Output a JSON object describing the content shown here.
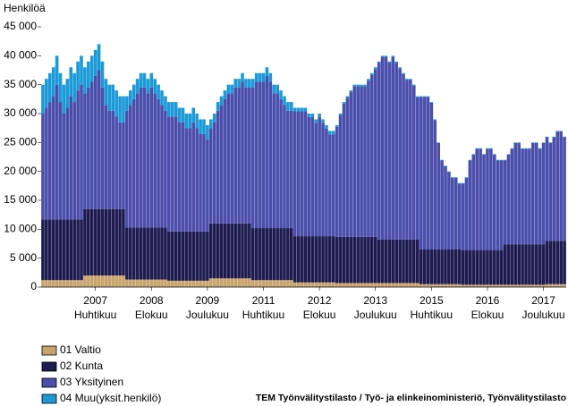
{
  "chart_data": {
    "type": "stacked_bar",
    "y_label": "Henkilöä",
    "source": "TEM Työnvälitystilasto / Työ- ja elinkeinoministeriö, Työnvälitystilasto",
    "ylim": [
      0,
      45000
    ],
    "yticks": [
      0,
      {
        "value": 5000,
        "label": "5 000"
      },
      {
        "value": 10000,
        "label": "10 000"
      },
      {
        "value": 15000,
        "label": "15 000"
      },
      {
        "value": 20000,
        "label": "20 000"
      },
      {
        "value": 25000,
        "label": "25 000"
      },
      {
        "value": 30000,
        "label": "30 000"
      },
      {
        "value": 35000,
        "label": "35 000"
      },
      {
        "value": 40000,
        "label": "40 000"
      },
      {
        "value": 45000,
        "label": "45 000"
      }
    ],
    "categories": [
      null,
      null,
      null,
      null,
      null,
      null,
      null,
      null,
      null,
      null,
      null,
      null,
      null,
      null,
      null,
      "2007 Huhtikuu",
      null,
      null,
      null,
      null,
      null,
      null,
      null,
      null,
      null,
      null,
      null,
      null,
      null,
      null,
      null,
      "2008 Elokuu",
      null,
      null,
      null,
      null,
      null,
      null,
      null,
      null,
      null,
      null,
      null,
      null,
      null,
      null,
      null,
      "2009 Joulukuu",
      null,
      null,
      null,
      null,
      null,
      null,
      null,
      null,
      null,
      null,
      null,
      null,
      null,
      null,
      null,
      "2011 Huhtikuu",
      null,
      null,
      null,
      null,
      null,
      null,
      null,
      null,
      null,
      null,
      null,
      null,
      null,
      null,
      null,
      "2012 Elokuu",
      null,
      null,
      null,
      null,
      null,
      null,
      null,
      null,
      null,
      null,
      null,
      null,
      null,
      null,
      null,
      "2013 Joulukuu",
      null,
      null,
      null,
      null,
      null,
      null,
      null,
      null,
      null,
      null,
      null,
      null,
      null,
      null,
      null,
      "2015 Huhtikuu",
      null,
      null,
      null,
      null,
      null,
      null,
      null,
      null,
      null,
      null,
      null,
      null,
      null,
      null,
      null,
      "2016 Elokuu",
      null,
      null,
      null,
      null,
      null,
      null,
      null,
      null,
      null,
      null,
      null,
      null,
      null,
      null,
      null,
      "2017 Joulukuu",
      null,
      null,
      null,
      null,
      null,
      null
    ],
    "series": [
      {
        "name": "01 Valtio",
        "color": "#c9a36c",
        "values": [
          1200,
          1200,
          1200,
          1200,
          1200,
          1200,
          1200,
          1200,
          1200,
          1200,
          1200,
          1200,
          2000,
          2000,
          2000,
          2000,
          2000,
          2000,
          2000,
          2000,
          2000,
          2000,
          2000,
          2000,
          1300,
          1300,
          1300,
          1300,
          1300,
          1300,
          1300,
          1300,
          1300,
          1300,
          1300,
          1300,
          1100,
          1100,
          1100,
          1100,
          1100,
          1100,
          1100,
          1100,
          1100,
          1100,
          1100,
          1100,
          1500,
          1500,
          1500,
          1500,
          1500,
          1500,
          1500,
          1500,
          1500,
          1500,
          1500,
          1500,
          1200,
          1200,
          1200,
          1200,
          1200,
          1200,
          1200,
          1200,
          1200,
          1200,
          1200,
          1200,
          800,
          800,
          800,
          800,
          800,
          800,
          800,
          800,
          800,
          800,
          800,
          800,
          700,
          700,
          700,
          700,
          700,
          700,
          700,
          700,
          700,
          700,
          700,
          700,
          700,
          700,
          700,
          700,
          700,
          700,
          700,
          700,
          700,
          700,
          700,
          700,
          500,
          500,
          500,
          500,
          500,
          500,
          500,
          500,
          500,
          500,
          500,
          500,
          400,
          400,
          400,
          400,
          400,
          400,
          400,
          400,
          400,
          400,
          400,
          400,
          400,
          400,
          400,
          400,
          400,
          400,
          400,
          400,
          400,
          400,
          400,
          400,
          500,
          500,
          500,
          500,
          500,
          500
        ]
      },
      {
        "name": "02 Kunta",
        "color": "#1d1b4f",
        "values": [
          10500,
          10500,
          10500,
          10500,
          10500,
          10500,
          10500,
          10500,
          10500,
          10500,
          10500,
          10500,
          11500,
          11500,
          11500,
          11500,
          11500,
          11500,
          11500,
          11500,
          11500,
          11500,
          11500,
          11500,
          9000,
          9000,
          9000,
          9000,
          9000,
          9000,
          9000,
          9000,
          9000,
          9000,
          9000,
          9000,
          8500,
          8500,
          8500,
          8500,
          8500,
          8500,
          8500,
          8500,
          8500,
          8500,
          8500,
          8500,
          9500,
          9500,
          9500,
          9500,
          9500,
          9500,
          9500,
          9500,
          9500,
          9500,
          9500,
          9500,
          9000,
          9000,
          9000,
          9000,
          9000,
          9000,
          9000,
          9000,
          9000,
          9000,
          9000,
          9000,
          8000,
          8000,
          8000,
          8000,
          8000,
          8000,
          8000,
          8000,
          8000,
          8000,
          8000,
          8000,
          8000,
          8000,
          8000,
          8000,
          8000,
          8000,
          8000,
          8000,
          8000,
          8000,
          8000,
          8000,
          7500,
          7500,
          7500,
          7500,
          7500,
          7500,
          7500,
          7500,
          7500,
          7500,
          7500,
          7500,
          6000,
          6000,
          6000,
          6000,
          6000,
          6000,
          6000,
          6000,
          6000,
          6000,
          6000,
          6000,
          6000,
          6000,
          6000,
          6000,
          6000,
          6000,
          6000,
          6000,
          6000,
          6000,
          6000,
          6000,
          7000,
          7000,
          7000,
          7000,
          7000,
          7000,
          7000,
          7000,
          7000,
          7000,
          7000,
          7000,
          7500,
          7500,
          7500,
          7500,
          7500,
          7500
        ]
      },
      {
        "name": "03 Yksityinen",
        "color": "#4b4eab",
        "values": [
          18300,
          19300,
          20300,
          21300,
          23300,
          20300,
          18300,
          19300,
          21300,
          20300,
          22300,
          23300,
          20000,
          21000,
          22000,
          23000,
          24000,
          21000,
          18000,
          17000,
          17000,
          16000,
          15000,
          15000,
          20200,
          21200,
          22200,
          23200,
          24200,
          24200,
          23200,
          24200,
          23200,
          22200,
          21200,
          20200,
          19900,
          19900,
          19900,
          18900,
          18900,
          17900,
          17900,
          18900,
          17900,
          16900,
          16900,
          15900,
          16500,
          17500,
          19500,
          20500,
          21500,
          22500,
          22500,
          23500,
          23500,
          24500,
          23500,
          23500,
          24300,
          25300,
          25300,
          25300,
          26300,
          25300,
          23300,
          23300,
          22300,
          21300,
          20300,
          20300,
          21600,
          21600,
          21600,
          21600,
          20600,
          20600,
          19600,
          20600,
          19600,
          18600,
          17600,
          17600,
          19000,
          21000,
          23000,
          24000,
          25000,
          26000,
          26000,
          26000,
          26000,
          27000,
          28000,
          29000,
          30600,
          31600,
          31600,
          30600,
          31600,
          30600,
          29600,
          28600,
          27600,
          27600,
          26600,
          24600,
          26400,
          26400,
          26400,
          25400,
          22400,
          18400,
          15400,
          14400,
          13400,
          12400,
          12400,
          11400,
          11500,
          12500,
          15500,
          16500,
          17500,
          17500,
          16500,
          17500,
          17500,
          16500,
          15500,
          15500,
          14500,
          15500,
          16500,
          17500,
          17500,
          16500,
          16500,
          16500,
          17500,
          17500,
          16500,
          17500,
          17900,
          16900,
          17900,
          18900,
          18900,
          17900
        ]
      },
      {
        "name": "04 Muu(yksit.henkilö)",
        "color": "#1b9ad7",
        "values": [
          5000,
          5000,
          5000,
          5000,
          5000,
          5000,
          5000,
          5000,
          5000,
          5000,
          5000,
          5000,
          4500,
          4500,
          4500,
          4500,
          4500,
          4500,
          4500,
          4500,
          4500,
          4500,
          4500,
          4500,
          2500,
          2500,
          2500,
          2500,
          2500,
          2500,
          2500,
          2500,
          2500,
          2500,
          2500,
          2500,
          2500,
          2500,
          2500,
          2500,
          2500,
          2500,
          2500,
          2500,
          2500,
          2500,
          2500,
          2500,
          1500,
          1500,
          1500,
          1500,
          1500,
          1500,
          1500,
          1500,
          1500,
          1500,
          1500,
          1500,
          1500,
          1500,
          1500,
          1500,
          1500,
          1500,
          1500,
          1500,
          1500,
          1500,
          1500,
          1500,
          600,
          600,
          600,
          600,
          600,
          600,
          600,
          600,
          600,
          600,
          600,
          600,
          300,
          300,
          300,
          300,
          300,
          300,
          300,
          300,
          300,
          300,
          300,
          300,
          200,
          200,
          200,
          200,
          200,
          200,
          200,
          200,
          200,
          200,
          200,
          200,
          100,
          100,
          100,
          100,
          100,
          100,
          100,
          100,
          100,
          100,
          100,
          100,
          100,
          100,
          100,
          100,
          100,
          100,
          100,
          100,
          100,
          100,
          100,
          100,
          100,
          100,
          100,
          100,
          100,
          100,
          100,
          100,
          100,
          100,
          100,
          100,
          100,
          100,
          100,
          100,
          100,
          100
        ]
      }
    ]
  }
}
